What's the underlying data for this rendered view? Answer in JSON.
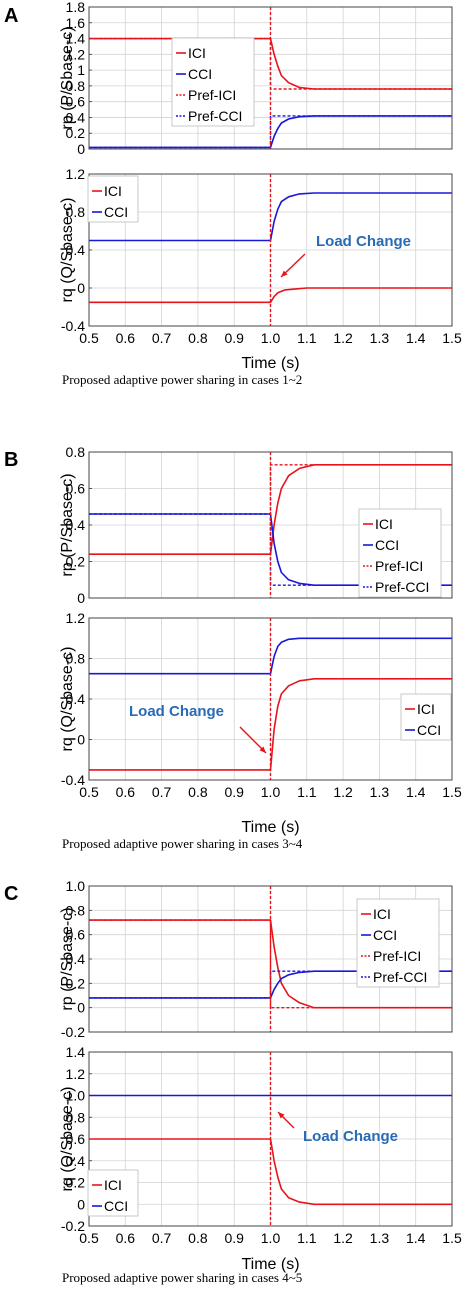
{
  "colors": {
    "ici": "#e8131b",
    "cci": "#1818d8",
    "annotation": "#2a6bb5",
    "arrow": "#e8131b",
    "grid": "#d3d3d3"
  },
  "panels": [
    {
      "label": "A",
      "caption": "Proposed adaptive power sharing in cases 1~2",
      "annotation": "Load Change",
      "xlabel": "Time (s)",
      "xticks": [
        "0.5",
        "0.6",
        "0.7",
        "0.8",
        "0.9",
        "1.0",
        "1.1",
        "1.2",
        "1.3",
        "1.4",
        "1.5"
      ]
    },
    {
      "label": "B",
      "caption": "Proposed adaptive power sharing in cases 3~4",
      "annotation": "Load Change",
      "xlabel": "Time (s)",
      "xticks": [
        "0.5",
        "0.6",
        "0.7",
        "0.8",
        "0.9",
        "1.0",
        "1.1",
        "1.2",
        "1.3",
        "1.4",
        "1.5"
      ]
    },
    {
      "label": "C",
      "caption": "Proposed adaptive power sharing in cases 4~5",
      "annotation": "Load Change",
      "xlabel": "Time (s)",
      "xticks": [
        "0.5",
        "0.6",
        "0.7",
        "0.8",
        "0.9",
        "1.0",
        "1.1",
        "1.2",
        "1.3",
        "1.4",
        "1.5"
      ]
    }
  ],
  "chart_data": [
    {
      "type": "line",
      "panel": "A",
      "subplot": "top",
      "ylabel": "rp (P/Sbase-c)",
      "xlim": [
        0.5,
        1.5
      ],
      "ylim": [
        0,
        1.8
      ],
      "yticks": [
        "0",
        "0.2",
        "0.4",
        "0.6",
        "0.8",
        "1",
        "1.2",
        "1.4",
        "1.6",
        "1.8"
      ],
      "legend": [
        "ICI",
        "CCI",
        "Pref-ICI",
        "Pref-CCI"
      ],
      "legend_position": "left",
      "grid": true,
      "series": [
        {
          "name": "ICI",
          "color": "ici",
          "style": "solid",
          "x": [
            0.5,
            1.0,
            1.01,
            1.02,
            1.03,
            1.05,
            1.08,
            1.12,
            1.5
          ],
          "y": [
            1.4,
            1.4,
            1.2,
            1.05,
            0.93,
            0.84,
            0.78,
            0.76,
            0.76
          ]
        },
        {
          "name": "CCI",
          "color": "cci",
          "style": "solid",
          "x": [
            0.5,
            1.0,
            1.01,
            1.02,
            1.03,
            1.05,
            1.08,
            1.12,
            1.5
          ],
          "y": [
            0.02,
            0.02,
            0.16,
            0.26,
            0.33,
            0.38,
            0.41,
            0.42,
            0.42
          ]
        },
        {
          "name": "Pref-ICI",
          "color": "ici",
          "style": "dashed",
          "x": [
            0.5,
            1.0,
            1.0,
            1.5
          ],
          "y": [
            1.4,
            1.4,
            0.76,
            0.76
          ]
        },
        {
          "name": "Pref-CCI",
          "color": "cci",
          "style": "dashed",
          "x": [
            0.5,
            1.0,
            1.0,
            1.5
          ],
          "y": [
            0.02,
            0.02,
            0.42,
            0.42
          ]
        }
      ]
    },
    {
      "type": "line",
      "panel": "A",
      "subplot": "bottom",
      "ylabel": "rq (Q/Sbase-c)",
      "xlabel": "Time (s)",
      "xlim": [
        0.5,
        1.5
      ],
      "ylim": [
        -0.4,
        1.2
      ],
      "yticks": [
        "-0.4",
        "0",
        "0.4",
        "0.8",
        "1.2"
      ],
      "xticks": [
        0.5,
        0.6,
        0.7,
        0.8,
        0.9,
        1.0,
        1.1,
        1.2,
        1.3,
        1.4,
        1.5
      ],
      "legend": [
        "ICI",
        "CCI"
      ],
      "legend_position": "top-left",
      "grid": true,
      "series": [
        {
          "name": "ICI",
          "color": "ici",
          "style": "solid",
          "x": [
            0.5,
            1.0,
            1.01,
            1.02,
            1.04,
            1.07,
            1.1,
            1.5
          ],
          "y": [
            -0.15,
            -0.15,
            -0.09,
            -0.05,
            -0.02,
            -0.01,
            0.0,
            0.0
          ]
        },
        {
          "name": "CCI",
          "color": "cci",
          "style": "solid",
          "x": [
            0.5,
            1.0,
            1.01,
            1.02,
            1.03,
            1.05,
            1.08,
            1.12,
            1.5
          ],
          "y": [
            0.5,
            0.5,
            0.7,
            0.83,
            0.91,
            0.96,
            0.99,
            1.0,
            1.0
          ]
        }
      ]
    },
    {
      "type": "line",
      "panel": "B",
      "subplot": "top",
      "ylabel": "rp (P/Sbase-c)",
      "xlim": [
        0.5,
        1.5
      ],
      "ylim": [
        0,
        0.8
      ],
      "yticks": [
        "0",
        "0.2",
        "0.4",
        "0.6",
        "0.8"
      ],
      "legend": [
        "ICI",
        "CCI",
        "Pref-ICI",
        "Pref-CCI"
      ],
      "legend_position": "right",
      "grid": true,
      "series": [
        {
          "name": "ICI",
          "color": "ici",
          "style": "solid",
          "x": [
            0.5,
            1.0,
            1.01,
            1.02,
            1.03,
            1.05,
            1.08,
            1.12,
            1.5
          ],
          "y": [
            0.24,
            0.24,
            0.4,
            0.52,
            0.6,
            0.67,
            0.71,
            0.73,
            0.73
          ]
        },
        {
          "name": "CCI",
          "color": "cci",
          "style": "solid",
          "x": [
            0.5,
            1.0,
            1.01,
            1.02,
            1.03,
            1.05,
            1.08,
            1.12,
            1.5
          ],
          "y": [
            0.46,
            0.46,
            0.3,
            0.2,
            0.14,
            0.1,
            0.08,
            0.07,
            0.07
          ]
        },
        {
          "name": "Pref-ICI",
          "color": "ici",
          "style": "dashed",
          "x": [
            0.5,
            1.0,
            1.0,
            1.5
          ],
          "y": [
            0.24,
            0.24,
            0.73,
            0.73
          ]
        },
        {
          "name": "Pref-CCI",
          "color": "cci",
          "style": "dashed",
          "x": [
            0.5,
            1.0,
            1.0,
            1.5
          ],
          "y": [
            0.46,
            0.46,
            0.07,
            0.07
          ]
        }
      ]
    },
    {
      "type": "line",
      "panel": "B",
      "subplot": "bottom",
      "ylabel": "rq (Q/Sbase-c)",
      "xlabel": "Time (s)",
      "xlim": [
        0.5,
        1.5
      ],
      "ylim": [
        -0.4,
        1.2
      ],
      "yticks": [
        "-0.4",
        "0",
        "0.4",
        "0.8",
        "1.2"
      ],
      "xticks": [
        0.5,
        0.6,
        0.7,
        0.8,
        0.9,
        1.0,
        1.1,
        1.2,
        1.3,
        1.4,
        1.5
      ],
      "legend": [
        "ICI",
        "CCI"
      ],
      "legend_position": "bottom-right",
      "grid": true,
      "series": [
        {
          "name": "ICI",
          "color": "ici",
          "style": "solid",
          "x": [
            0.5,
            1.0,
            1.01,
            1.02,
            1.03,
            1.05,
            1.08,
            1.12,
            1.5
          ],
          "y": [
            -0.3,
            -0.3,
            0.1,
            0.33,
            0.45,
            0.53,
            0.58,
            0.6,
            0.6
          ]
        },
        {
          "name": "CCI",
          "color": "cci",
          "style": "solid",
          "x": [
            0.5,
            1.0,
            1.01,
            1.02,
            1.03,
            1.05,
            1.08,
            1.12,
            1.5
          ],
          "y": [
            0.65,
            0.65,
            0.82,
            0.92,
            0.96,
            0.99,
            1.0,
            1.0,
            1.0
          ]
        }
      ]
    },
    {
      "type": "line",
      "panel": "C",
      "subplot": "top",
      "ylabel": "rp (P/Sbase-c)",
      "xlim": [
        0.5,
        1.5
      ],
      "ylim": [
        -0.2,
        1.0
      ],
      "yticks": [
        "-0.2",
        "0",
        "0.2",
        "0.4",
        "0.6",
        "0.8",
        "1.0"
      ],
      "legend": [
        "ICI",
        "CCI",
        "Pref-ICI",
        "Pref-CCI"
      ],
      "legend_position": "top-right",
      "grid": true,
      "series": [
        {
          "name": "ICI",
          "color": "ici",
          "style": "solid",
          "x": [
            0.5,
            1.0,
            1.01,
            1.02,
            1.03,
            1.05,
            1.08,
            1.12,
            1.5
          ],
          "y": [
            0.72,
            0.72,
            0.5,
            0.33,
            0.2,
            0.1,
            0.04,
            0.0,
            0.0
          ]
        },
        {
          "name": "CCI",
          "color": "cci",
          "style": "solid",
          "x": [
            0.5,
            1.0,
            1.01,
            1.02,
            1.03,
            1.05,
            1.08,
            1.12,
            1.5
          ],
          "y": [
            0.08,
            0.08,
            0.15,
            0.2,
            0.24,
            0.27,
            0.29,
            0.3,
            0.3
          ]
        },
        {
          "name": "Pref-ICI",
          "color": "ici",
          "style": "dashed",
          "x": [
            0.5,
            1.0,
            1.0,
            1.5
          ],
          "y": [
            0.72,
            0.72,
            0.0,
            0.0
          ]
        },
        {
          "name": "Pref-CCI",
          "color": "cci",
          "style": "dashed",
          "x": [
            0.5,
            1.0,
            1.0,
            1.5
          ],
          "y": [
            0.08,
            0.08,
            0.3,
            0.3
          ]
        }
      ]
    },
    {
      "type": "line",
      "panel": "C",
      "subplot": "bottom",
      "ylabel": "rq (Q/Sbase-c)",
      "xlabel": "Time (s)",
      "xlim": [
        0.5,
        1.5
      ],
      "ylim": [
        -0.2,
        1.4
      ],
      "yticks": [
        "-0.2",
        "0",
        "0.2",
        "0.4",
        "0.6",
        "0.8",
        "1.0",
        "1.2",
        "1.4"
      ],
      "xticks": [
        0.5,
        0.6,
        0.7,
        0.8,
        0.9,
        1.0,
        1.1,
        1.2,
        1.3,
        1.4,
        1.5
      ],
      "legend": [
        "ICI",
        "CCI"
      ],
      "legend_position": "bottom-left",
      "grid": true,
      "series": [
        {
          "name": "ICI",
          "color": "ici",
          "style": "solid",
          "x": [
            0.5,
            1.0,
            1.01,
            1.02,
            1.03,
            1.05,
            1.08,
            1.12,
            1.5
          ],
          "y": [
            0.6,
            0.6,
            0.4,
            0.25,
            0.14,
            0.06,
            0.02,
            0.0,
            0.0
          ]
        },
        {
          "name": "CCI",
          "color": "cci",
          "style": "solid",
          "x": [
            0.5,
            1.0,
            1.5
          ],
          "y": [
            1.0,
            1.0,
            1.0
          ]
        }
      ]
    }
  ]
}
